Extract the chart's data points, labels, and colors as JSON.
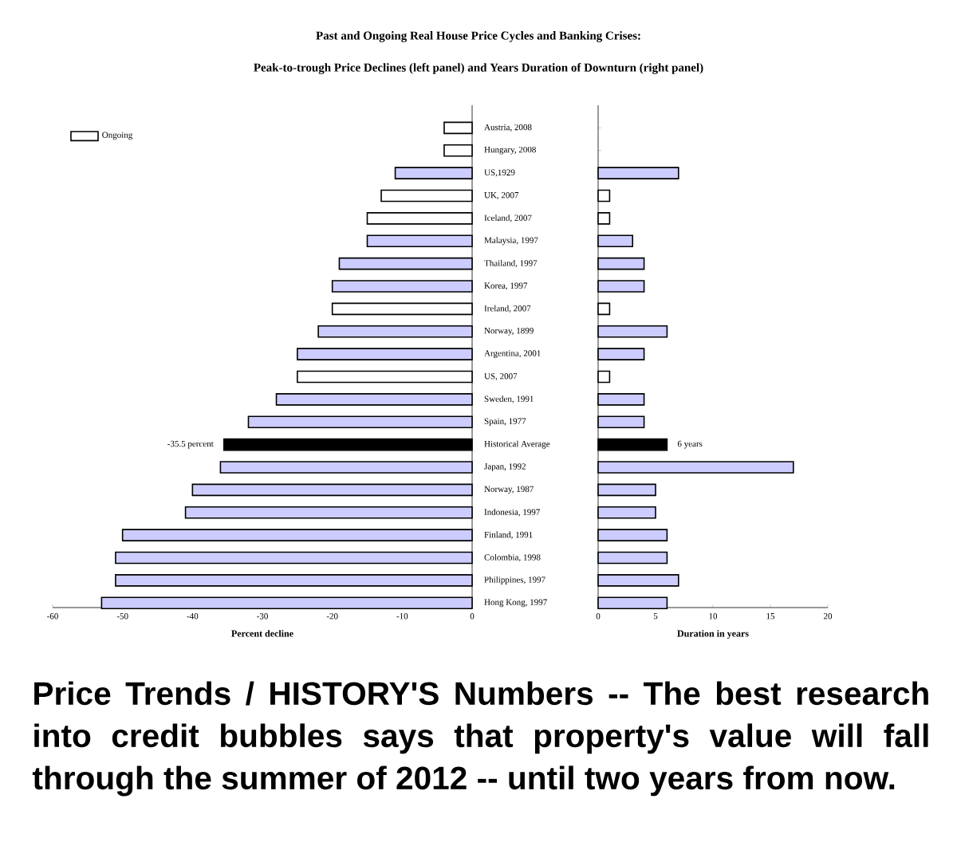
{
  "chart_data": [
    {
      "type": "bar",
      "orientation": "horizontal",
      "title": "Past and Ongoing Real House Price Cycles and Banking Crises:",
      "subtitle": "Peak-to-trough Price Declines (left panel) and Years Duration of Downturn (right panel)",
      "xlabel": "Percent decline",
      "categories": [
        "Austria, 2008",
        "Hungary, 2008",
        "US,1929",
        "UK, 2007",
        "Iceland, 2007",
        "Malaysia, 1997",
        "Thailand, 1997",
        "Korea, 1997",
        "Ireland, 2007",
        "Norway, 1899",
        "Argentina, 2001",
        "US, 2007",
        "Sweden, 1991",
        "Spain, 1977",
        "Historical Average",
        "Japan, 1992",
        "Norway, 1987",
        "Indonesia, 1997",
        "Finland, 1991",
        "Colombia, 1998",
        "Philippines, 1997",
        "Hong Kong, 1997"
      ],
      "series": [
        {
          "name": "Ongoing",
          "color": "#ffffff",
          "values": [
            -4,
            -4,
            null,
            -13,
            -15,
            null,
            null,
            null,
            -20,
            null,
            null,
            -25,
            null,
            null,
            null,
            null,
            null,
            null,
            null,
            null,
            null,
            null
          ]
        },
        {
          "color": "#ccccff",
          "values": [
            null,
            null,
            -11,
            null,
            null,
            -15,
            -19,
            -20,
            null,
            -22,
            -25,
            null,
            -28,
            -32,
            null,
            -36,
            -40,
            -41,
            -50,
            -51,
            -51,
            -53
          ]
        },
        {
          "color": "#000000",
          "values": [
            null,
            null,
            null,
            null,
            null,
            null,
            null,
            null,
            null,
            null,
            null,
            null,
            null,
            null,
            -35.5,
            null,
            null,
            null,
            null,
            null,
            null,
            null
          ],
          "value_labels": [
            null,
            null,
            null,
            null,
            null,
            null,
            null,
            null,
            null,
            null,
            null,
            null,
            null,
            null,
            "-35.5 percent",
            null,
            null,
            null,
            null,
            null,
            null,
            null
          ]
        }
      ],
      "xlim": [
        -60,
        0
      ],
      "xticks": [
        -60,
        -50,
        -40,
        -30,
        -20,
        -10,
        0
      ],
      "legend": "top left",
      "annotations": [
        "Price Trends / HISTORY'S Numbers -- The best research into credit bubbles says that property's value will fall through the summer of 2012 -- until two years from now."
      ]
    },
    {
      "type": "bar",
      "orientation": "horizontal",
      "xlabel": "Duration in years",
      "tick_labels": "x",
      "categories": [
        null,
        null,
        null,
        null,
        null,
        null,
        null,
        null,
        null,
        null,
        null,
        null,
        null,
        null,
        null,
        null,
        null,
        null,
        null,
        null,
        null,
        null
      ],
      "series": [
        {
          "color": "#ffffff",
          "values": [
            null,
            null,
            null,
            1,
            1,
            null,
            null,
            null,
            1,
            null,
            null,
            1,
            null,
            null,
            null,
            null,
            null,
            null,
            null,
            null,
            null,
            null
          ]
        },
        {
          "color": "#ccccff",
          "values": [
            null,
            null,
            7,
            null,
            null,
            3,
            4,
            4,
            null,
            6,
            4,
            null,
            4,
            4,
            null,
            17,
            5,
            5,
            6,
            6,
            7,
            6
          ]
        },
        {
          "color": "#000000",
          "values": [
            null,
            null,
            null,
            null,
            null,
            null,
            null,
            null,
            null,
            null,
            null,
            null,
            null,
            null,
            6,
            null,
            null,
            null,
            null,
            null,
            null,
            null
          ],
          "value_labels": [
            null,
            null,
            null,
            null,
            null,
            null,
            null,
            null,
            null,
            null,
            null,
            null,
            null,
            null,
            "6 years",
            null,
            null,
            null,
            null,
            null,
            null,
            null
          ]
        }
      ],
      "xlim": [
        0,
        20
      ],
      "xticks": [
        0,
        5,
        10,
        15,
        20
      ]
    }
  ]
}
